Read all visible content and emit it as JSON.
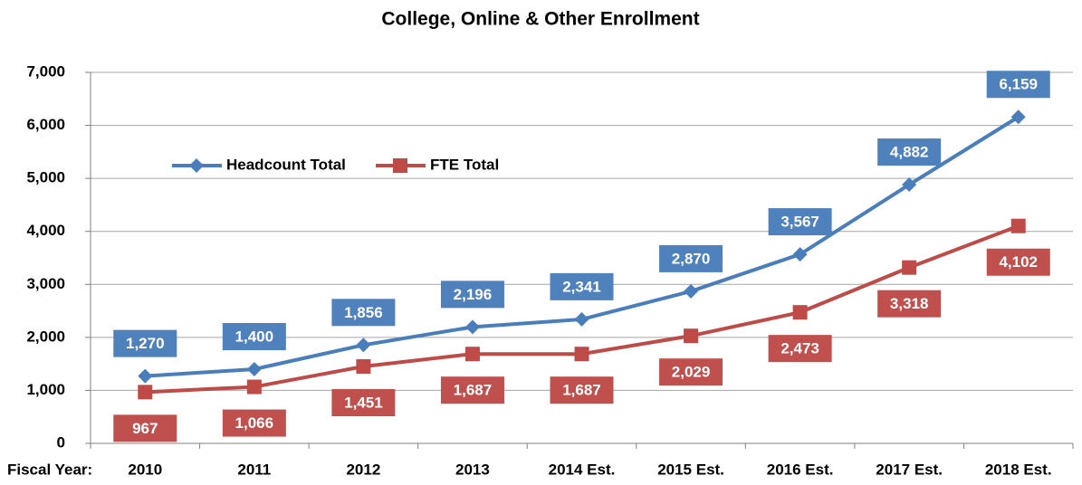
{
  "chart_data": {
    "type": "line",
    "title": "College, Online & Other Enrollment",
    "x_label": "Fiscal Year:",
    "categories": [
      "2010",
      "2011",
      "2012",
      "2013",
      "2014 Est.",
      "2015 Est.",
      "2016 Est.",
      "2017 Est.",
      "2018 Est."
    ],
    "series": [
      {
        "name": "Headcount Total",
        "color": "#4a7ebb",
        "label_color": "#4f81bd",
        "marker": "diamond",
        "values": [
          1270,
          1400,
          1856,
          2196,
          2341,
          2870,
          3567,
          4882,
          6159
        ],
        "value_labels": [
          "1,270",
          "1,400",
          "1,856",
          "2,196",
          "2,341",
          "2,870",
          "3,567",
          "4,882",
          "6,159"
        ]
      },
      {
        "name": "FTE Total",
        "color": "#be4b48",
        "label_color": "#c0504d",
        "marker": "square",
        "values": [
          967,
          1066,
          1451,
          1687,
          1687,
          2029,
          2473,
          3318,
          4102
        ],
        "value_labels": [
          "967",
          "1,066",
          "1,451",
          "1,687",
          "1,687",
          "2,029",
          "2,473",
          "3,318",
          "4,102"
        ]
      }
    ],
    "ylim": [
      0,
      7000
    ],
    "yticks": [
      0,
      {
        "value": 1000,
        "label": "1,000"
      },
      {
        "value": 2000,
        "label": "2,000"
      },
      {
        "value": 3000,
        "label": "3,000"
      },
      {
        "value": 4000,
        "label": "4,000"
      },
      {
        "value": 5000,
        "label": "5,000"
      },
      {
        "value": 6000,
        "label": "6,000"
      },
      {
        "value": 7000,
        "label": "7,000"
      }
    ],
    "grid": true
  }
}
